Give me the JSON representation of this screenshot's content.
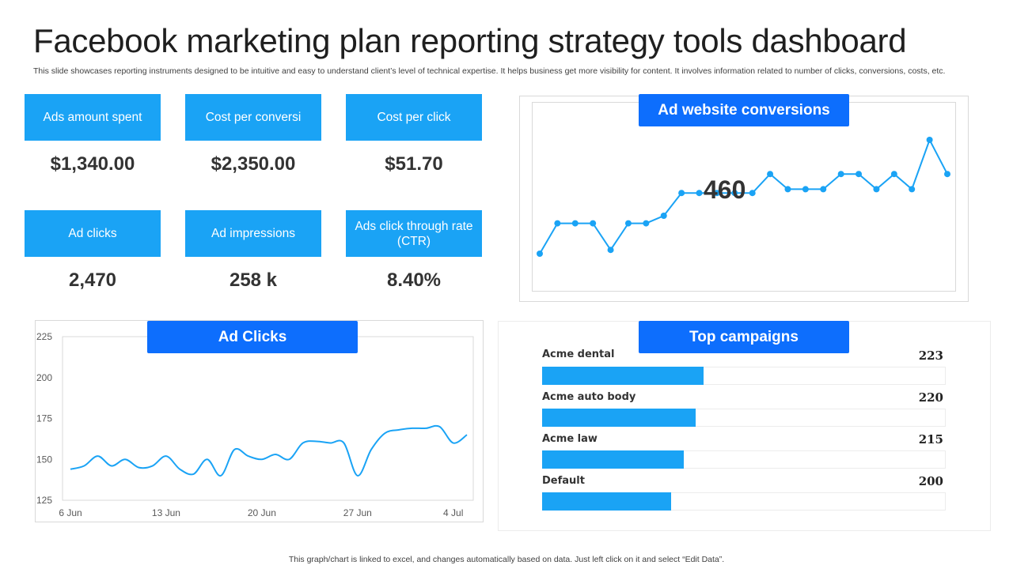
{
  "title": "Facebook marketing plan reporting strategy tools dashboard",
  "subtitle": "This slide showcases reporting instruments designed to be intuitive and easy to understand client’s level of technical expertise. It helps business get more visibility for content. It involves information related to number of clicks, conversions, costs, etc.",
  "kpis": [
    {
      "label": "Ads amount  spent",
      "value": "$1,340.00"
    },
    {
      "label": "Cost per conversi",
      "value": "$2,350.00"
    },
    {
      "label": "Cost per click",
      "value": "$51.70"
    },
    {
      "label": "Ad clicks",
      "value": "2,470"
    },
    {
      "label": "Ad impressions",
      "value": "258 k"
    },
    {
      "label": "Ads click through rate (CTR)",
      "value": "8.40%"
    }
  ],
  "conversions": {
    "header": "Ad website conversions",
    "value": "460"
  },
  "ad_clicks": {
    "header": "Ad Clicks"
  },
  "campaigns": {
    "header": "Top campaigns",
    "items": [
      {
        "name": "Acme dental",
        "value": "223",
        "fill": 0.4
      },
      {
        "name": "Acme auto body",
        "value": "220",
        "fill": 0.38
      },
      {
        "name": "Acme law",
        "value": "215",
        "fill": 0.35
      },
      {
        "name": "Default",
        "value": "200",
        "fill": 0.32
      }
    ]
  },
  "footnote": "This graph/chart is linked to excel,  and changes automatically based on data. Just left click on it and select “Edit Data”.",
  "colors": {
    "accent": "#1aa3f5",
    "header": "#0d6efd",
    "line": "#1aa3f5"
  },
  "chart_data": [
    {
      "type": "line",
      "title": "Ad website conversions",
      "x": [
        1,
        2,
        3,
        4,
        5,
        6,
        7,
        8,
        9,
        10,
        11,
        12,
        13,
        14,
        15,
        16,
        17,
        18,
        19,
        20,
        21,
        22,
        23,
        24
      ],
      "values": [
        30,
        38,
        38,
        38,
        31,
        38,
        38,
        40,
        46,
        46,
        46,
        46,
        46,
        51,
        47,
        47,
        47,
        51,
        51,
        47,
        51,
        47,
        60,
        51
      ],
      "ylim": [
        20,
        70
      ]
    },
    {
      "type": "line",
      "title": "Ad Clicks",
      "x": [
        "6 Jun",
        "7 Jun",
        "8 Jun",
        "9 Jun",
        "10 Jun",
        "11 Jun",
        "12 Jun",
        "13 Jun",
        "14 Jun",
        "15 Jun",
        "16 Jun",
        "17 Jun",
        "18 Jun",
        "19 Jun",
        "20 Jun",
        "21 Jun",
        "22 Jun",
        "23 Jun",
        "24 Jun",
        "25 Jun",
        "26 Jun",
        "27 Jun",
        "28 Jun",
        "29 Jun",
        "30 Jun",
        "1 Jul",
        "2 Jul",
        "3 Jul",
        "4 Jul",
        "5 Jul"
      ],
      "values": [
        144,
        146,
        152,
        146,
        150,
        145,
        146,
        152,
        144,
        141,
        150,
        140,
        156,
        152,
        150,
        153,
        150,
        160,
        161,
        160,
        160,
        140,
        156,
        166,
        168,
        169,
        169,
        170,
        160,
        165
      ],
      "xticks": [
        "6 Jun",
        "13 Jun",
        "20 Jun",
        "27 Jun",
        "4 Jul"
      ],
      "yticks": [
        125,
        150,
        175,
        200,
        225
      ],
      "ylim": [
        125,
        225
      ],
      "grid": false
    }
  ]
}
